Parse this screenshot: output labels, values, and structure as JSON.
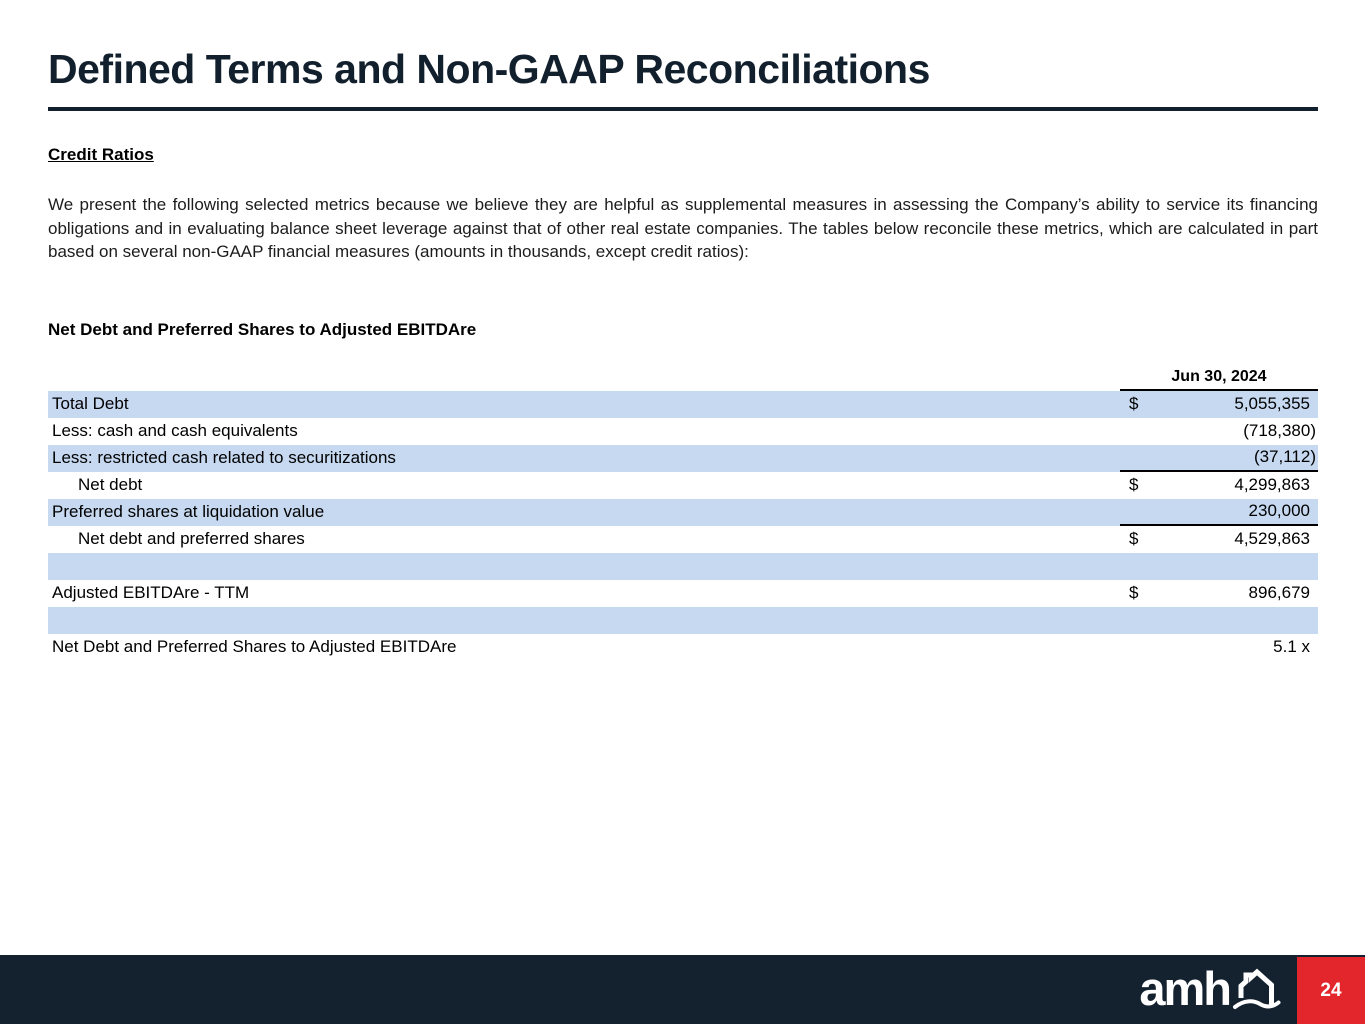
{
  "page": {
    "title": "Defined Terms and Non-GAAP Reconciliations",
    "section_heading": "Credit Ratios",
    "intro_paragraph": "We present the following selected metrics because we believe they are helpful as supplemental measures in assessing the Company’s ability to service its financing obligations and in evaluating balance sheet leverage against that of other real estate companies. The tables below reconcile these metrics, which are calculated in part based on several non-GAAP financial measures (amounts in thousands, except credit ratios):"
  },
  "table": {
    "title": "Net Debt and Preferred Shares to Adjusted EBITDAre",
    "column_header": "Jun 30, 2024",
    "rows": [
      {
        "label": "Total Debt",
        "currency": "$",
        "value": "5,055,355",
        "shaded": true,
        "indent": false,
        "rule_below": false,
        "spacer": false
      },
      {
        "label": "Less: cash and cash equivalents",
        "currency": "",
        "value": "(718,380)",
        "shaded": false,
        "indent": false,
        "rule_below": false,
        "spacer": false
      },
      {
        "label": "Less: restricted cash related to securitizations",
        "currency": "",
        "value": "(37,112)",
        "shaded": true,
        "indent": false,
        "rule_below": true,
        "spacer": false
      },
      {
        "label": "Net debt",
        "currency": "$",
        "value": "4,299,863",
        "shaded": false,
        "indent": true,
        "rule_below": false,
        "spacer": false
      },
      {
        "label": "Preferred shares at liquidation value",
        "currency": "",
        "value": "230,000",
        "shaded": true,
        "indent": false,
        "rule_below": true,
        "spacer": false
      },
      {
        "label": "Net debt and preferred shares",
        "currency": "$",
        "value": "4,529,863",
        "shaded": false,
        "indent": true,
        "rule_below": false,
        "spacer": false
      },
      {
        "label": "",
        "currency": "",
        "value": "",
        "shaded": true,
        "indent": false,
        "rule_below": false,
        "spacer": true
      },
      {
        "label": "Adjusted EBITDAre - TTM",
        "currency": "$",
        "value": "896,679",
        "shaded": false,
        "indent": false,
        "rule_below": false,
        "spacer": false
      },
      {
        "label": "",
        "currency": "",
        "value": "",
        "shaded": true,
        "indent": false,
        "rule_below": false,
        "spacer": true
      },
      {
        "label": "Net Debt and Preferred Shares to Adjusted EBITDAre",
        "currency": "",
        "value": "5.1 x",
        "shaded": false,
        "indent": false,
        "rule_below": false,
        "spacer": false
      }
    ]
  },
  "footer": {
    "logo_text": "amh",
    "page_number": "24"
  },
  "colors": {
    "accent_navy": "#14222f",
    "row_shade_blue": "#c6d9f0",
    "page_number_red": "#e2262c",
    "rule_black": "#000000"
  }
}
